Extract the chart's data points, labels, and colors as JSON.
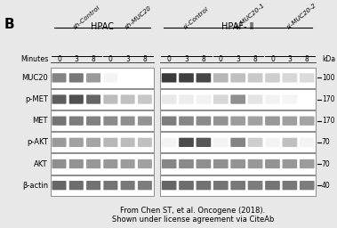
{
  "background_color": "#e8e8e8",
  "panel_label": "B",
  "hpac_label": "HPAC",
  "hpaf_label": "HPAF- Ⅱ",
  "group_labels": [
    "sh-Control",
    "sh-MUC20",
    "si-Control",
    "si-MUC20-1",
    "si-MUC20-2"
  ],
  "minutes_label": "Minutes",
  "row_labels": [
    "MUC20",
    "p-MET",
    "MET",
    "p-AKT",
    "AKT",
    "β-actin"
  ],
  "kda_labels": [
    "100",
    "170",
    "170",
    "70",
    "70",
    "40"
  ],
  "kda_label": "kDa",
  "citation1": "From Chen ST, et al. Oncogene (2018).",
  "citation2": "Shown under license agreement via CiteAb",
  "bands": {
    "MUC20": [
      0.55,
      0.6,
      0.45,
      0.05,
      0.04,
      0.03,
      0.88,
      0.85,
      0.82,
      0.32,
      0.28,
      0.24,
      0.22,
      0.18,
      0.16
    ],
    "p-MET": [
      0.72,
      0.78,
      0.68,
      0.3,
      0.28,
      0.25,
      0.1,
      0.08,
      0.06,
      0.18,
      0.5,
      0.12,
      0.06,
      0.05,
      0.04
    ],
    "MET": [
      0.62,
      0.58,
      0.56,
      0.52,
      0.5,
      0.48,
      0.58,
      0.54,
      0.52,
      0.48,
      0.44,
      0.42,
      0.46,
      0.43,
      0.41
    ],
    "p-AKT": [
      0.45,
      0.42,
      0.4,
      0.32,
      0.3,
      0.28,
      0.05,
      0.8,
      0.75,
      0.05,
      0.55,
      0.22,
      0.05,
      0.28,
      0.05
    ],
    "AKT": [
      0.5,
      0.48,
      0.46,
      0.46,
      0.44,
      0.42,
      0.54,
      0.52,
      0.5,
      0.5,
      0.48,
      0.46,
      0.48,
      0.46,
      0.44
    ],
    "b-actin": [
      0.68,
      0.65,
      0.63,
      0.62,
      0.6,
      0.58,
      0.68,
      0.65,
      0.63,
      0.62,
      0.6,
      0.58,
      0.62,
      0.6,
      0.58
    ]
  }
}
